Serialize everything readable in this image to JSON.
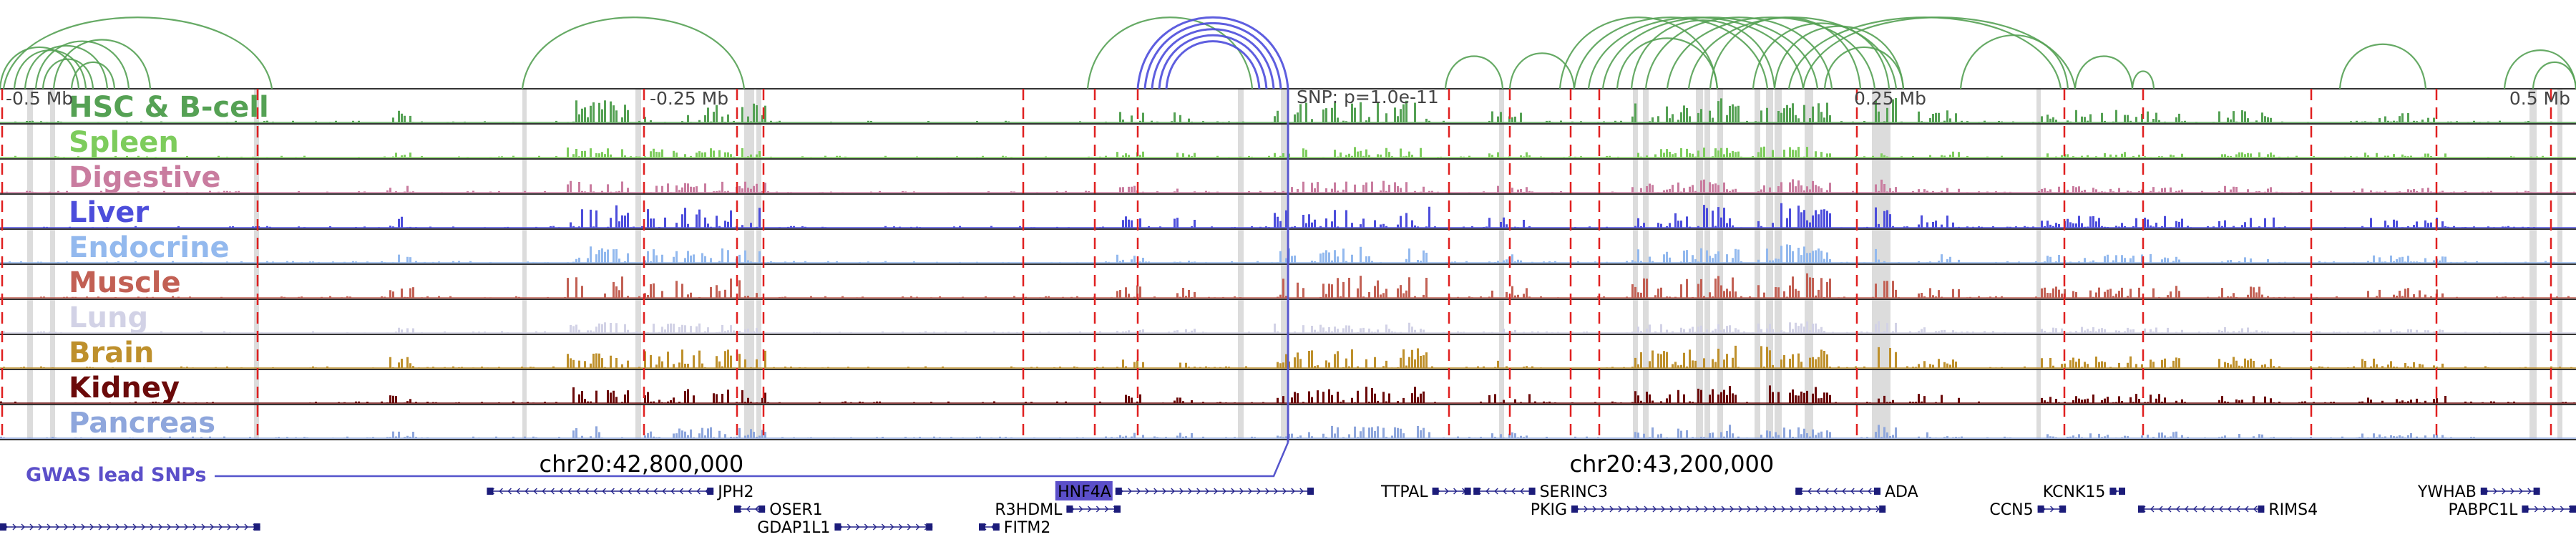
{
  "coordinates": {
    "offsets": [
      {
        "label": "-0.5 Mb",
        "value": -0.5
      },
      {
        "label": "-0.25 Mb",
        "value": -0.25
      },
      {
        "label": "0.25 Mb",
        "value": 0.25
      },
      {
        "label": "0.5 Mb",
        "value": 0.5
      }
    ],
    "chromosome": [
      {
        "label": "chr20:42,800,000",
        "position": 42800000
      },
      {
        "label": "chr20:43,200,000",
        "position": 43200000
      }
    ]
  },
  "snp": {
    "label": "SNP: p=1.0e-11",
    "position": 43051000
  },
  "gwas_label": "GWAS lead SNPs",
  "region": {
    "start": 42551000,
    "end": 43551000
  },
  "tracks": [
    {
      "label": "HSC & B-cell",
      "color": "#55a154"
    },
    {
      "label": "Spleen",
      "color": "#7dcc5c"
    },
    {
      "label": "Digestive",
      "color": "#c97c9f"
    },
    {
      "label": "Liver",
      "color": "#4c4ddb"
    },
    {
      "label": "Endocrine",
      "color": "#93b9ee"
    },
    {
      "label": "Muscle",
      "color": "#c26054"
    },
    {
      "label": "Lung",
      "color": "#d2d2e6"
    },
    {
      "label": "Brain",
      "color": "#be902c"
    },
    {
      "label": "Kidney",
      "color": "#6b0a0a"
    },
    {
      "label": "Pancreas",
      "color": "#8ea6dc"
    }
  ],
  "genes": [
    {
      "name": "JPH2",
      "start": 42740000,
      "end": 42828000,
      "strand": "-",
      "row": 0,
      "label_side": "right"
    },
    {
      "name": "OSER1",
      "start": 42836000,
      "end": 42848000,
      "strand": "-",
      "row": 1,
      "label_side": "right"
    },
    {
      "name": "GDAP1L1",
      "start": 42875000,
      "end": 42913000,
      "strand": "+",
      "row": 2,
      "label_side": "left"
    },
    {
      "name": "HNF4A",
      "start": 42984000,
      "end": 43061000,
      "strand": "+",
      "row": 0,
      "label_side": "left",
      "highlight": true
    },
    {
      "name": "R3HDML",
      "start": 42965000,
      "end": 42986000,
      "strand": "+",
      "row": 1,
      "label_side": "left"
    },
    {
      "name": "FITM2",
      "start": 42931000,
      "end": 42939000,
      "strand": "-",
      "row": 2,
      "label_side": "right"
    },
    {
      "name": "TTPAL",
      "start": 43107000,
      "end": 43122000,
      "strand": "+",
      "row": 0,
      "label_side": "left"
    },
    {
      "name": "SERINC3",
      "start": 43123000,
      "end": 43147000,
      "strand": "-",
      "row": 0,
      "label_side": "right"
    },
    {
      "name": "PKIG",
      "start": 43161000,
      "end": 43283000,
      "strand": "+",
      "row": 1,
      "label_side": "left"
    },
    {
      "name": "ADA",
      "start": 43248000,
      "end": 43281000,
      "strand": "-",
      "row": 0,
      "label_side": "right"
    },
    {
      "name": "KCNK15",
      "start": 43370000,
      "end": 43376000,
      "strand": "+",
      "row": 0,
      "label_side": "left"
    },
    {
      "name": "CCN5",
      "start": 43342000,
      "end": 43353000,
      "strand": "+",
      "row": 1,
      "label_side": "left"
    },
    {
      "name": "RIMS4",
      "start": 43381000,
      "end": 43430000,
      "strand": "-",
      "row": 1,
      "label_side": "right"
    },
    {
      "name": "YWHAB",
      "start": 43514000,
      "end": 43537000,
      "strand": "+",
      "row": 0,
      "label_side": "left"
    },
    {
      "name": "PABPC1L",
      "start": 43530000,
      "end": 43551000,
      "strand": "+",
      "row": 1,
      "label_side": "left"
    },
    {
      "name": "",
      "start": 42551000,
      "end": 42652000,
      "strand": "+",
      "row": 2,
      "label_side": "none"
    }
  ]
}
